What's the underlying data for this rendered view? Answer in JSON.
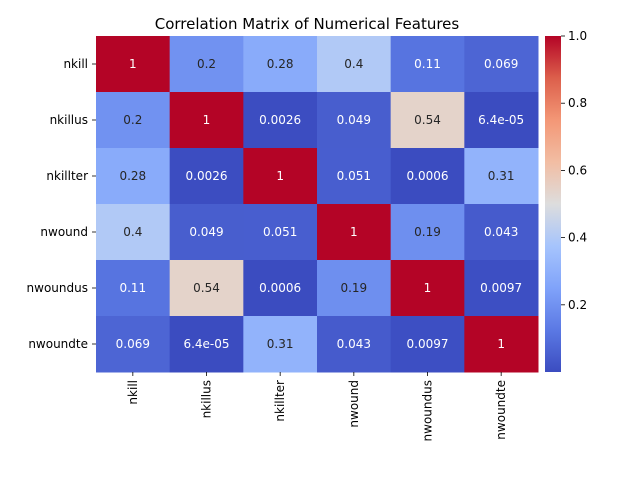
{
  "chart_data": {
    "type": "heatmap",
    "title": "Correlation Matrix of Numerical Features",
    "xlabel": "",
    "ylabel": "",
    "rows": [
      "nkill",
      "nkillus",
      "nkillter",
      "nwound",
      "nwoundus",
      "nwoundte"
    ],
    "columns": [
      "nkill",
      "nkillus",
      "nkillter",
      "nwound",
      "nwoundus",
      "nwoundte"
    ],
    "values": [
      [
        1,
        0.2,
        0.28,
        0.4,
        0.11,
        0.069
      ],
      [
        0.2,
        1,
        0.0026,
        0.049,
        0.54,
        6.4e-05
      ],
      [
        0.28,
        0.0026,
        1,
        0.051,
        0.0006,
        0.31
      ],
      [
        0.4,
        0.049,
        0.051,
        1,
        0.19,
        0.043
      ],
      [
        0.11,
        0.54,
        0.0006,
        0.19,
        1,
        0.0097
      ],
      [
        0.069,
        6.4e-05,
        0.31,
        0.043,
        0.0097,
        1
      ]
    ],
    "annotations": [
      [
        "1",
        "0.2",
        "0.28",
        "0.4",
        "0.11",
        "0.069"
      ],
      [
        "0.2",
        "1",
        "0.0026",
        "0.049",
        "0.54",
        "6.4e-05"
      ],
      [
        "0.28",
        "0.0026",
        "1",
        "0.051",
        "0.0006",
        "0.31"
      ],
      [
        "0.4",
        "0.049",
        "0.051",
        "1",
        "0.19",
        "0.043"
      ],
      [
        "0.11",
        "0.54",
        "0.0006",
        "0.19",
        "1",
        "0.0097"
      ],
      [
        "0.069",
        "6.4e-05",
        "0.31",
        "0.043",
        "0.0097",
        "1"
      ]
    ],
    "colormap": "coolwarm",
    "vmin": 6.4e-05,
    "vmax": 1,
    "colorbar_ticks": [
      0.2,
      0.4,
      0.6,
      0.8,
      1.0
    ],
    "colorbar_tick_labels": [
      "0.2",
      "0.4",
      "0.6",
      "0.8",
      "1.0"
    ],
    "grid": false
  }
}
